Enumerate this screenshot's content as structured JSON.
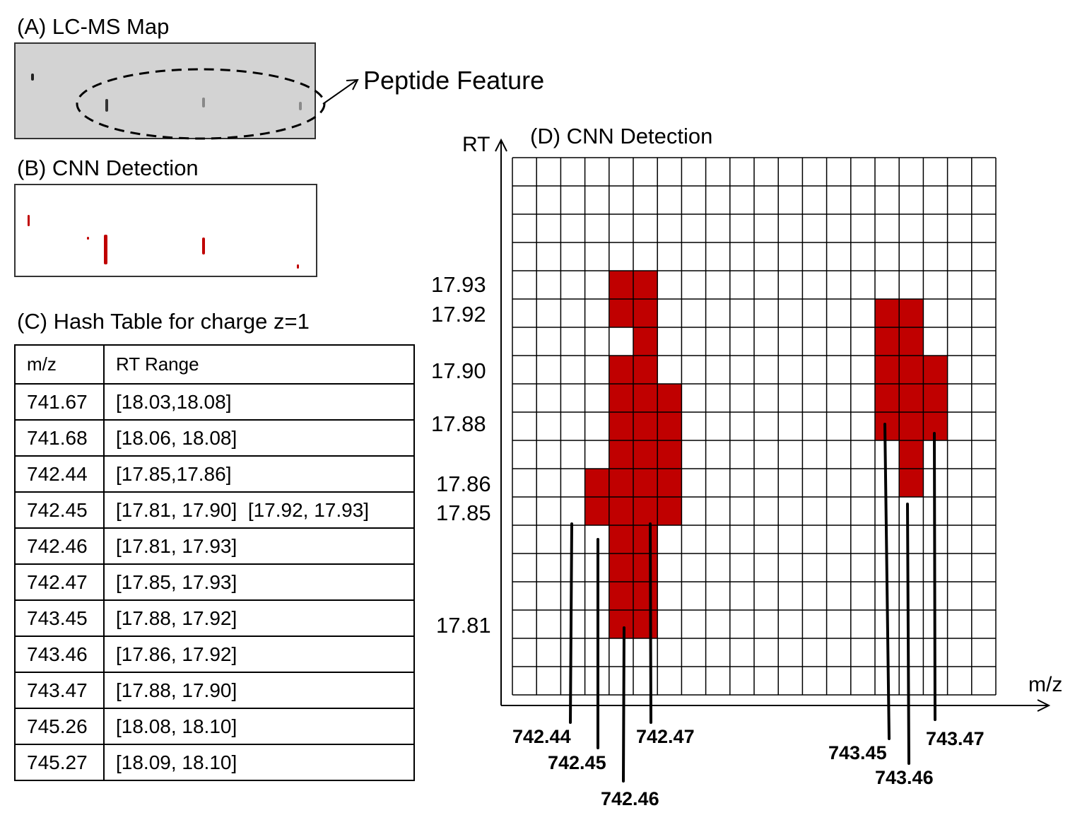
{
  "panel_a": {
    "title": "(A) LC-MS Map",
    "annotation": "Peptide Feature"
  },
  "panel_b": {
    "title": "(B) CNN Detection"
  },
  "panel_c": {
    "title": "(C) Hash Table for charge z=1",
    "headers": [
      "m/z",
      "RT Range"
    ],
    "rows": [
      [
        "741.67",
        "[18.03,18.08]"
      ],
      [
        "741.68",
        "[18.06, 18.08]"
      ],
      [
        "742.44",
        "[17.85,17.86]"
      ],
      [
        "742.45",
        "[17.81, 17.90]  [17.92, 17.93]"
      ],
      [
        "742.46",
        "[17.81, 17.93]"
      ],
      [
        "742.47",
        "[17.85, 17.93]"
      ],
      [
        "743.45",
        "[17.88, 17.92]"
      ],
      [
        "743.46",
        "[17.86, 17.92]"
      ],
      [
        "743.47",
        "[17.88, 17.90]"
      ],
      [
        "745.26",
        "[18.08, 18.10]"
      ],
      [
        "745.27",
        "[18.09, 18.10]"
      ]
    ]
  },
  "panel_d": {
    "title": "(D) CNN Detection",
    "y_axis_label": "RT",
    "x_axis_label": "m/z",
    "rt_labels": [
      "17.93",
      "17.92",
      "17.90",
      "17.88",
      "17.86",
      "17.85",
      "17.81"
    ],
    "mz_labels": [
      "742.44",
      "742.45",
      "742.46",
      "742.47",
      "743.45",
      "743.46",
      "743.47"
    ],
    "grid": {
      "columns": 20,
      "rows": 19
    },
    "filled_cells": {
      "col_3": [
        11,
        12
      ],
      "col_4": [
        4,
        5,
        7,
        8,
        9,
        10,
        11,
        12,
        13,
        14,
        15,
        16
      ],
      "col_5": [
        4,
        5,
        6,
        7,
        8,
        9,
        10,
        11,
        12,
        13,
        14,
        15,
        16
      ],
      "col_6": [
        8,
        9,
        10,
        11,
        12
      ],
      "col_15": [
        5,
        6,
        7,
        8,
        9
      ],
      "col_16": [
        5,
        6,
        7,
        8,
        9,
        10,
        11
      ],
      "col_17": [
        7,
        8,
        9
      ]
    },
    "fill_color": "#c00000"
  }
}
